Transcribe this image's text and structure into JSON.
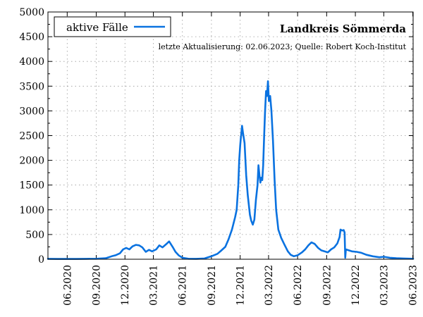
{
  "chart_data": {
    "type": "line",
    "title": "Landkreis Sömmerda",
    "subtitle": "letzte Aktualisierung: 02.06.2023; Quelle: Robert Koch-Institut",
    "xlabel": "",
    "ylabel": "",
    "ylim": [
      0,
      5000
    ],
    "xlim": [
      "2020-04-01",
      "2023-06-02"
    ],
    "yticks": [
      0,
      500,
      1000,
      1500,
      2000,
      2500,
      3000,
      3500,
      4000,
      4500,
      5000
    ],
    "xticks": [
      {
        "date": "2020-06-01",
        "label": "06.2020"
      },
      {
        "date": "2020-09-01",
        "label": "09.2020"
      },
      {
        "date": "2020-12-01",
        "label": "12.2020"
      },
      {
        "date": "2021-03-01",
        "label": "03.2021"
      },
      {
        "date": "2021-06-01",
        "label": "06.2021"
      },
      {
        "date": "2021-09-01",
        "label": "09.2021"
      },
      {
        "date": "2021-12-01",
        "label": "12.2021"
      },
      {
        "date": "2022-03-01",
        "label": "03.2022"
      },
      {
        "date": "2022-06-01",
        "label": "06.2022"
      },
      {
        "date": "2022-09-01",
        "label": "09.2022"
      },
      {
        "date": "2022-12-01",
        "label": "12.2022"
      },
      {
        "date": "2023-03-01",
        "label": "03.2023"
      },
      {
        "date": "2023-06-01",
        "label": "06.2023"
      }
    ],
    "grid": true,
    "legend_position": "top-left",
    "series": [
      {
        "name": "aktive Fälle",
        "color": "#0a72e0",
        "points": [
          [
            "2020-04-01",
            8
          ],
          [
            "2020-05-01",
            6
          ],
          [
            "2020-06-01",
            5
          ],
          [
            "2020-07-01",
            6
          ],
          [
            "2020-08-01",
            8
          ],
          [
            "2020-09-01",
            10
          ],
          [
            "2020-10-01",
            20
          ],
          [
            "2020-10-20",
            60
          ],
          [
            "2020-11-01",
            80
          ],
          [
            "2020-11-15",
            120
          ],
          [
            "2020-11-25",
            200
          ],
          [
            "2020-12-05",
            230
          ],
          [
            "2020-12-15",
            200
          ],
          [
            "2020-12-25",
            260
          ],
          [
            "2021-01-05",
            290
          ],
          [
            "2021-01-15",
            280
          ],
          [
            "2021-01-25",
            240
          ],
          [
            "2021-02-05",
            150
          ],
          [
            "2021-02-15",
            190
          ],
          [
            "2021-02-25",
            160
          ],
          [
            "2021-03-10",
            200
          ],
          [
            "2021-03-20",
            280
          ],
          [
            "2021-03-30",
            240
          ],
          [
            "2021-04-10",
            300
          ],
          [
            "2021-04-20",
            360
          ],
          [
            "2021-05-01",
            250
          ],
          [
            "2021-05-10",
            150
          ],
          [
            "2021-05-20",
            80
          ],
          [
            "2021-06-01",
            30
          ],
          [
            "2021-06-20",
            10
          ],
          [
            "2021-07-15",
            8
          ],
          [
            "2021-08-10",
            15
          ],
          [
            "2021-09-01",
            60
          ],
          [
            "2021-09-20",
            110
          ],
          [
            "2021-10-01",
            170
          ],
          [
            "2021-10-15",
            250
          ],
          [
            "2021-10-25",
            400
          ],
          [
            "2021-11-05",
            600
          ],
          [
            "2021-11-15",
            850
          ],
          [
            "2021-11-20",
            1000
          ],
          [
            "2021-11-25",
            1500
          ],
          [
            "2021-11-28",
            2000
          ],
          [
            "2021-12-01",
            2300
          ],
          [
            "2021-12-03",
            2450
          ],
          [
            "2021-12-05",
            2550
          ],
          [
            "2021-12-07",
            2700
          ],
          [
            "2021-12-10",
            2550
          ],
          [
            "2021-12-15",
            2350
          ],
          [
            "2021-12-20",
            1700
          ],
          [
            "2021-12-25",
            1300
          ],
          [
            "2022-01-01",
            900
          ],
          [
            "2022-01-05",
            780
          ],
          [
            "2022-01-10",
            700
          ],
          [
            "2022-01-15",
            800
          ],
          [
            "2022-01-20",
            1200
          ],
          [
            "2022-01-25",
            1500
          ],
          [
            "2022-01-28",
            1900
          ],
          [
            "2022-01-31",
            1700
          ],
          [
            "2022-02-03",
            1550
          ],
          [
            "2022-02-06",
            1650
          ],
          [
            "2022-02-09",
            1600
          ],
          [
            "2022-02-12",
            1900
          ],
          [
            "2022-02-15",
            2500
          ],
          [
            "2022-02-18",
            3000
          ],
          [
            "2022-02-21",
            3400
          ],
          [
            "2022-02-24",
            3300
          ],
          [
            "2022-02-27",
            3600
          ],
          [
            "2022-03-02",
            3200
          ],
          [
            "2022-03-06",
            3300
          ],
          [
            "2022-03-10",
            3000
          ],
          [
            "2022-03-15",
            2400
          ],
          [
            "2022-03-20",
            1600
          ],
          [
            "2022-03-25",
            1000
          ],
          [
            "2022-04-01",
            600
          ],
          [
            "2022-04-10",
            430
          ],
          [
            "2022-04-20",
            300
          ],
          [
            "2022-05-01",
            160
          ],
          [
            "2022-05-10",
            90
          ],
          [
            "2022-05-20",
            60
          ],
          [
            "2022-06-01",
            80
          ],
          [
            "2022-06-15",
            140
          ],
          [
            "2022-06-25",
            200
          ],
          [
            "2022-07-05",
            280
          ],
          [
            "2022-07-15",
            340
          ],
          [
            "2022-07-25",
            310
          ],
          [
            "2022-08-05",
            230
          ],
          [
            "2022-08-15",
            180
          ],
          [
            "2022-08-25",
            160
          ],
          [
            "2022-09-05",
            140
          ],
          [
            "2022-09-15",
            200
          ],
          [
            "2022-09-25",
            240
          ],
          [
            "2022-10-05",
            320
          ],
          [
            "2022-10-12",
            450
          ],
          [
            "2022-10-15",
            600
          ],
          [
            "2022-10-20",
            580
          ],
          [
            "2022-10-25",
            590
          ],
          [
            "2022-10-28",
            540
          ],
          [
            "2022-10-30",
            30
          ],
          [
            "2022-11-01",
            200
          ],
          [
            "2022-11-10",
            180
          ],
          [
            "2022-11-20",
            160
          ],
          [
            "2022-12-05",
            150
          ],
          [
            "2022-12-20",
            130
          ],
          [
            "2023-01-05",
            90
          ],
          [
            "2023-01-25",
            60
          ],
          [
            "2023-02-15",
            40
          ],
          [
            "2023-03-01",
            50
          ],
          [
            "2023-03-20",
            30
          ],
          [
            "2023-04-10",
            20
          ],
          [
            "2023-05-01",
            15
          ],
          [
            "2023-05-20",
            12
          ],
          [
            "2023-06-02",
            10
          ]
        ]
      }
    ]
  }
}
